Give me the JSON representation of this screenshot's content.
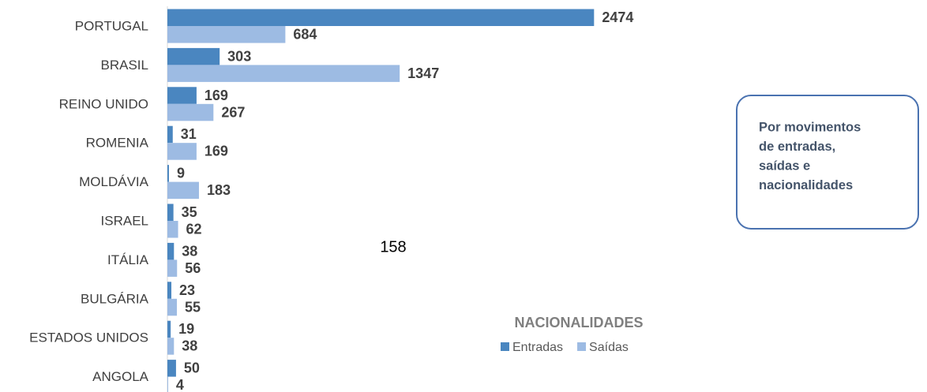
{
  "chart_data": {
    "type": "bar",
    "orientation": "horizontal",
    "title": "NACIONALIDADES",
    "page_number": "158",
    "annotation": [
      "Por movimentos",
      "de entradas,",
      "saídas e",
      "nacionalidades"
    ],
    "categories": [
      "PORTUGAL",
      "BRASIL",
      "REINO UNIDO",
      "ROMENIA",
      "MOLDÁVIA",
      "ISRAEL",
      "ITÁLIA",
      "BULGÁRIA",
      "ESTADOS UNIDOS",
      "ANGOLA"
    ],
    "series": [
      {
        "name": "Entradas",
        "color": "#4a86c0",
        "values": [
          2474,
          303,
          169,
          31,
          9,
          35,
          38,
          23,
          19,
          50
        ]
      },
      {
        "name": "Saídas",
        "color": "#9dbbe3",
        "values": [
          684,
          1347,
          267,
          169,
          183,
          62,
          56,
          55,
          38,
          4
        ]
      }
    ],
    "xlim": [
      0,
      2500
    ],
    "legend": "bottom-right"
  }
}
